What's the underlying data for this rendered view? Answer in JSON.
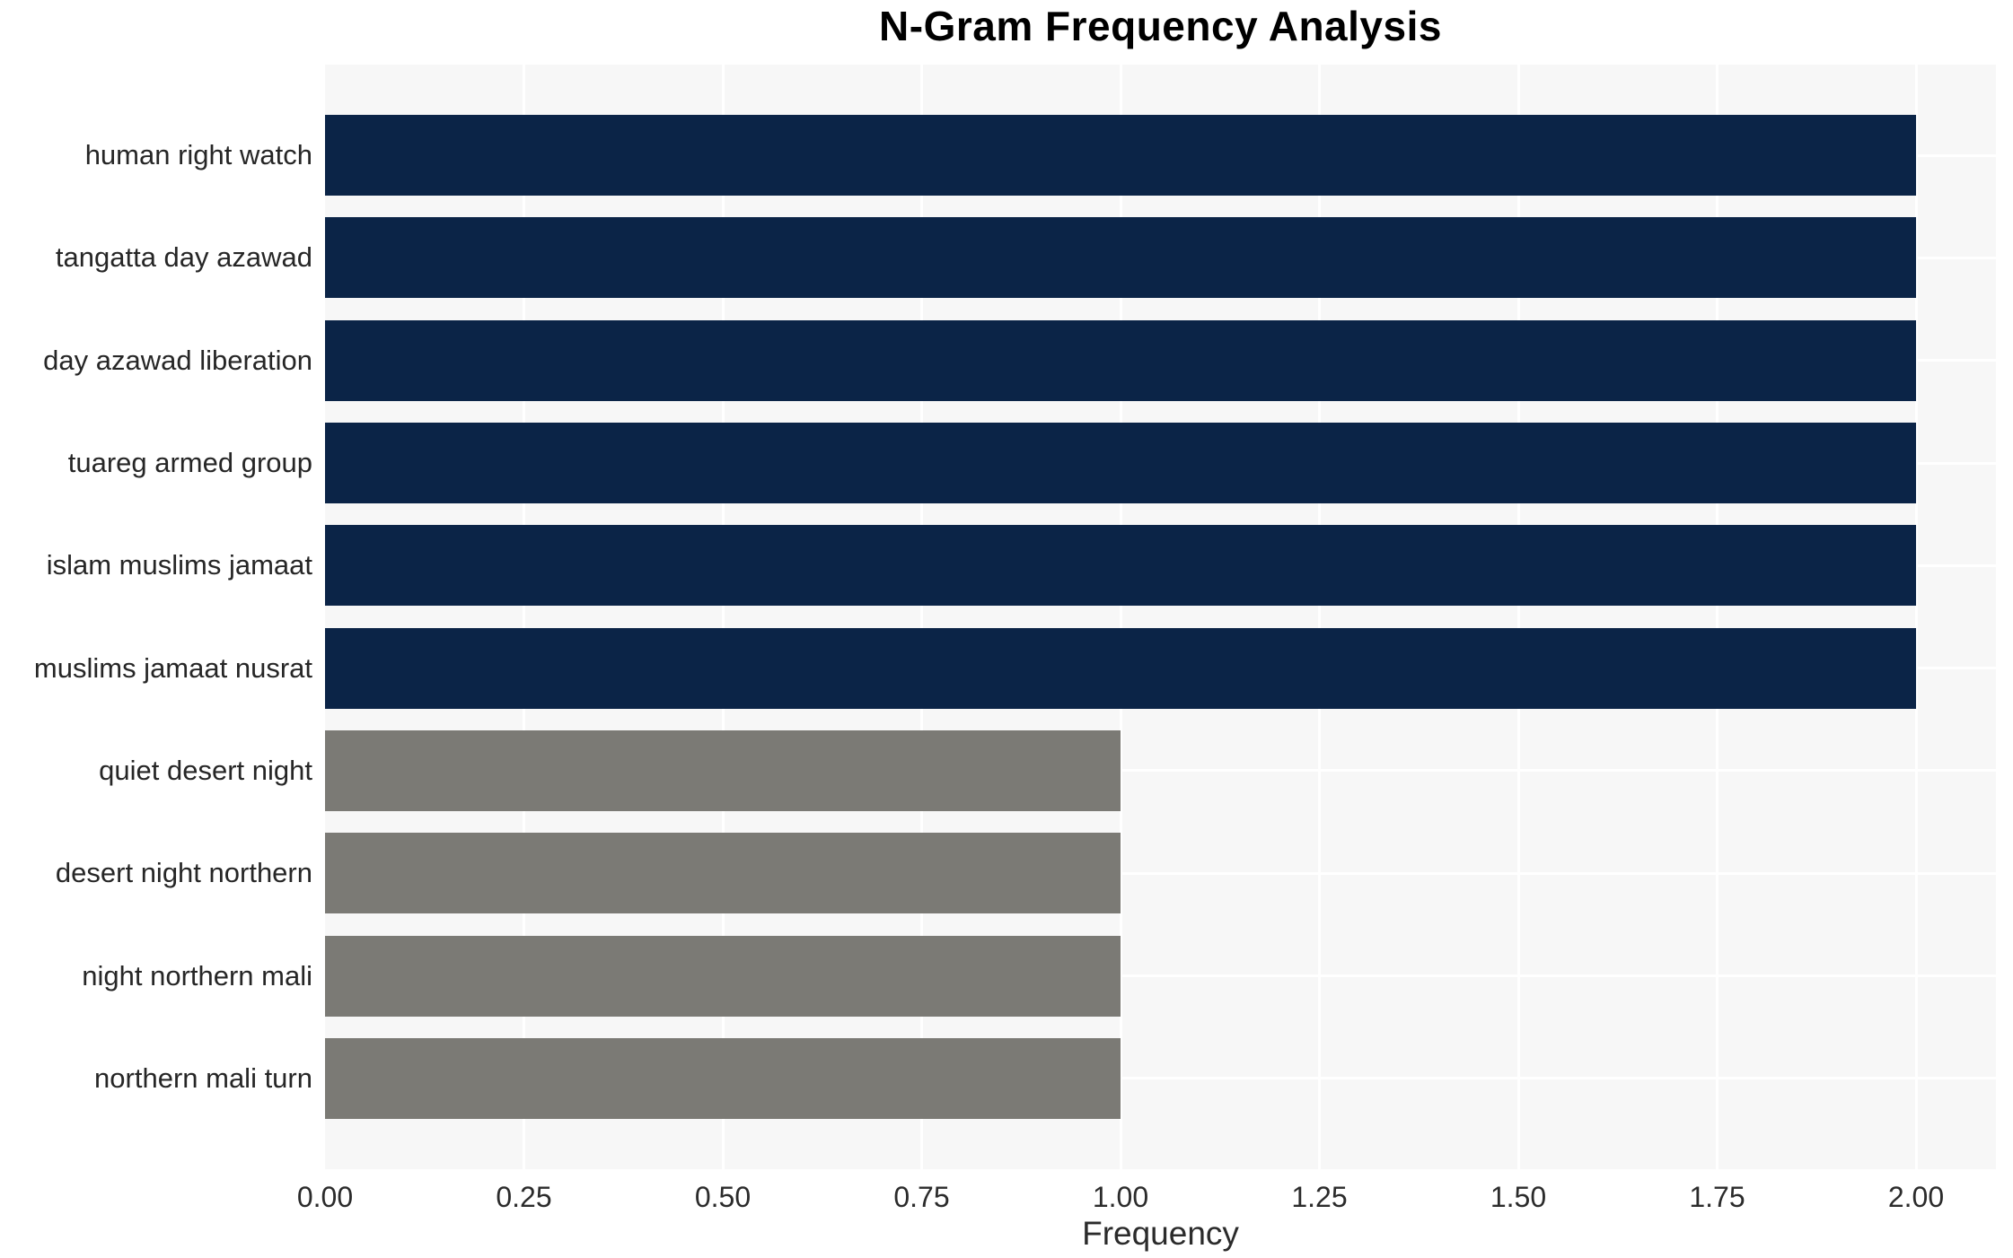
{
  "title": "N-Gram Frequency Analysis",
  "chart_data": {
    "type": "bar",
    "orientation": "horizontal",
    "title": "N-Gram Frequency Analysis",
    "xlabel": "Frequency",
    "ylabel": "",
    "categories": [
      "human right watch",
      "tangatta day azawad",
      "day azawad liberation",
      "tuareg armed group",
      "islam muslims jamaat",
      "muslims jamaat nusrat",
      "quiet desert night",
      "desert night northern",
      "night northern mali",
      "northern mali turn"
    ],
    "values": [
      2,
      2,
      2,
      2,
      2,
      2,
      1,
      1,
      1,
      1
    ],
    "bar_colors": [
      "#0b2447",
      "#0b2447",
      "#0b2447",
      "#0b2447",
      "#0b2447",
      "#0b2447",
      "#7b7a75",
      "#7b7a75",
      "#7b7a75",
      "#7b7a75"
    ],
    "xlim": [
      0,
      2.1
    ],
    "xticks": [
      "0.00",
      "0.25",
      "0.50",
      "0.75",
      "1.00",
      "1.25",
      "1.50",
      "1.75",
      "2.00"
    ],
    "xtick_values": [
      0,
      0.25,
      0.5,
      0.75,
      1.0,
      1.25,
      1.5,
      1.75,
      2.0
    ],
    "grid": true,
    "legend": false,
    "colors": {
      "bar_high": "#0b2447",
      "bar_low": "#7b7a75",
      "plot_background": "#f7f7f7",
      "gridline": "#ffffff",
      "title_text": "#000000",
      "label_text": "#262626",
      "tick_text": "#2b2b2b",
      "figure_background": "#ffffff"
    }
  }
}
